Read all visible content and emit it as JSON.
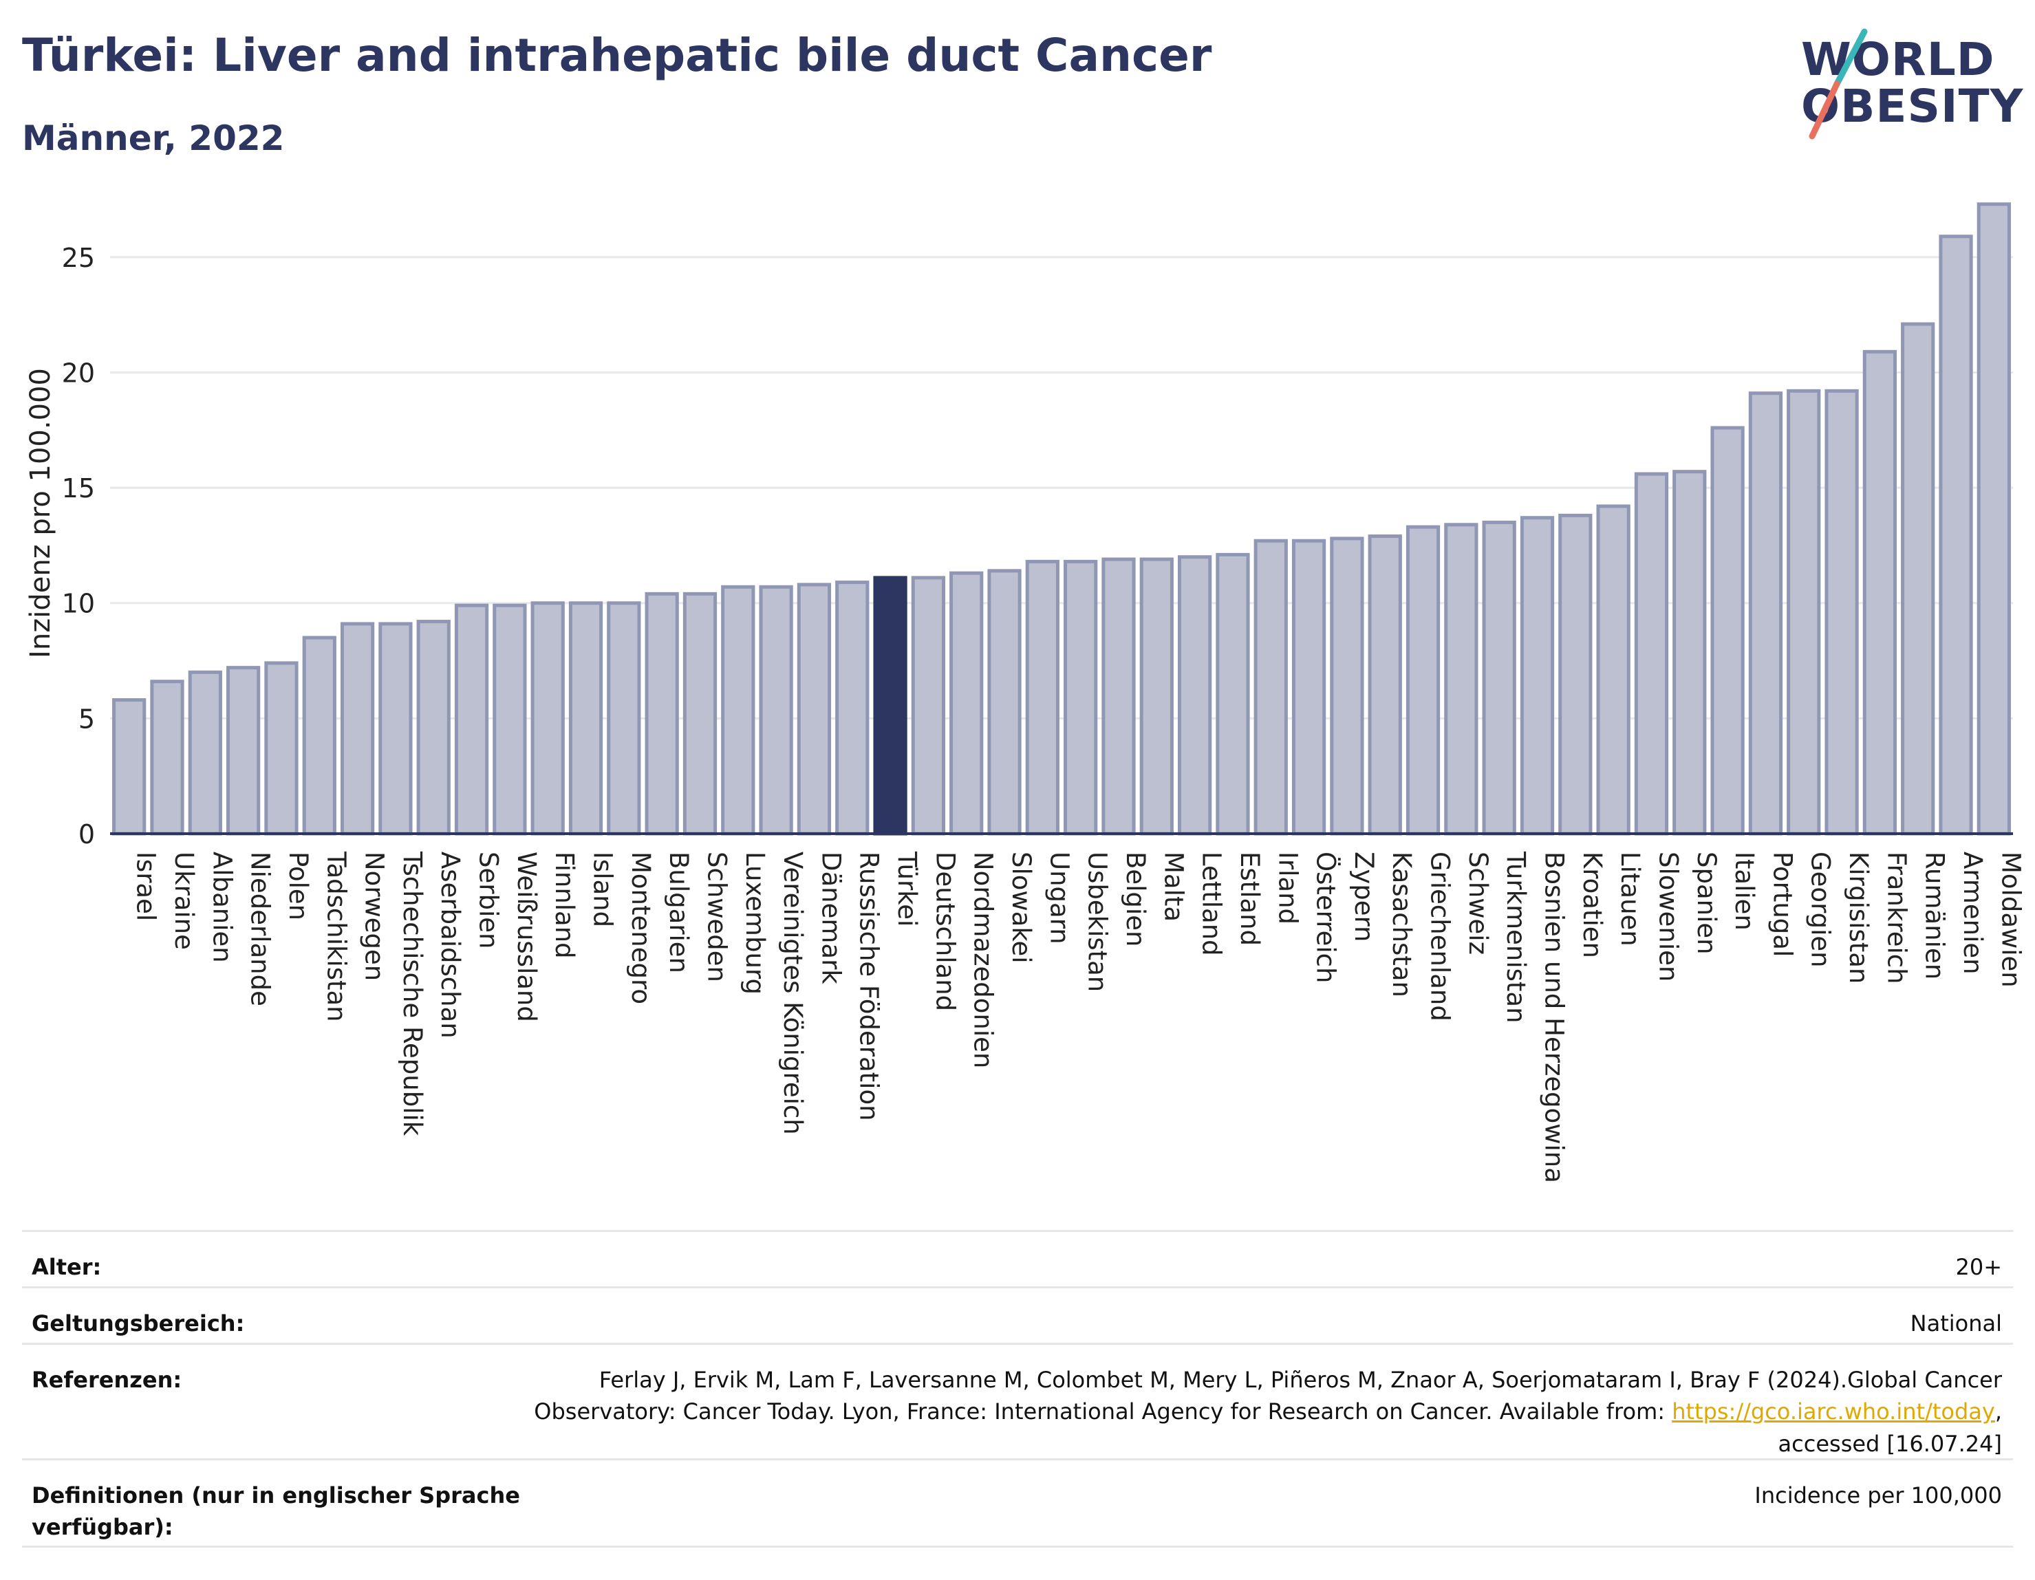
{
  "header": {
    "title": "Türkei: Liver and intrahepatic bile duct Cancer",
    "subtitle": "Männer, 2022"
  },
  "logo": {
    "line1": "WORLD",
    "line2": "OBESITY",
    "colors": {
      "text": "#2d3561",
      "slash_top": "#3ab5b8",
      "slash_bottom": "#e8705f"
    }
  },
  "colors": {
    "bar": "#bcc0d0",
    "bar_stroke": "#9097b4",
    "highlight": "#2d3561",
    "grid": "#e8e8ec",
    "axis": "#2d3561"
  },
  "chart_data": {
    "type": "bar",
    "ylabel": "Inzidenz pro 100.000",
    "ylim": [
      0,
      27.8
    ],
    "yticks": [
      0,
      5,
      10,
      15,
      20,
      25
    ],
    "grid": true,
    "highlight": "Türkei",
    "categories": [
      "Israel",
      "Ukraine",
      "Albanien",
      "Niederlande",
      "Polen",
      "Tadschikistan",
      "Norwegen",
      "Tschechische Republik",
      "Aserbaidschan",
      "Serbien",
      "Weißrussland",
      "Finnland",
      "Island",
      "Montenegro",
      "Bulgarien",
      "Schweden",
      "Luxemburg",
      "Vereinigtes Königreich",
      "Dänemark",
      "Russische Föderation",
      "Türkei",
      "Deutschland",
      "Nordmazedonien",
      "Slowakei",
      "Ungarn",
      "Usbekistan",
      "Belgien",
      "Malta",
      "Lettland",
      "Estland",
      "Irland",
      "Österreich",
      "Zypern",
      "Kasachstan",
      "Griechenland",
      "Schweiz",
      "Turkmenistan",
      "Bosnien und Herzegowina",
      "Kroatien",
      "Litauen",
      "Slowenien",
      "Spanien",
      "Italien",
      "Portugal",
      "Georgien",
      "Kirgisistan",
      "Frankreich",
      "Rumänien",
      "Armenien",
      "Moldawien"
    ],
    "values": [
      5.8,
      6.6,
      7.0,
      7.2,
      7.4,
      8.5,
      9.1,
      9.1,
      9.2,
      9.9,
      9.9,
      10.0,
      10.0,
      10.0,
      10.4,
      10.4,
      10.7,
      10.7,
      10.8,
      10.9,
      11.1,
      11.1,
      11.3,
      11.4,
      11.8,
      11.8,
      11.9,
      11.9,
      12.0,
      12.1,
      12.7,
      12.7,
      12.8,
      12.9,
      13.3,
      13.4,
      13.5,
      13.7,
      13.8,
      14.2,
      15.6,
      15.7,
      17.6,
      19.1,
      19.2,
      19.2,
      20.9,
      22.1,
      25.9,
      27.3
    ]
  },
  "meta": [
    {
      "key": "Alter:",
      "value": "20+"
    },
    {
      "key": "Geltungsbereich:",
      "value": "National"
    },
    {
      "key": "Referenzen:",
      "value_lines": [
        "Ferlay J, Ervik M, Lam F, Laversanne M, Colombet M, Mery L, Piñeros M, Znaor A, Soerjomataram I, Bray F (2024).Global Cancer",
        "Observatory: Cancer Today. Lyon, France: International Agency for Research on Cancer. Available from: ",
        "https://gco.iarc.who.int/today",
        ",",
        "accessed [16.07.24]"
      ]
    },
    {
      "key_lines": [
        "Definitionen (nur in englischer Sprache",
        "verfügbar):"
      ],
      "value": "Incidence per 100,000"
    }
  ]
}
